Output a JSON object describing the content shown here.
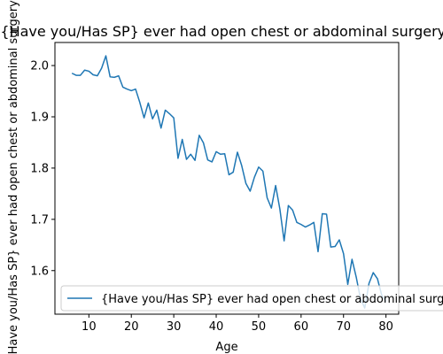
{
  "chart_data": {
    "type": "line",
    "title": "{Have you/Has SP} ever had open chest or abdominal surgery?",
    "xlabel": "Age",
    "ylabel": "{Have you/Has SP} ever had open chest or abdominal surgery?",
    "xlim": [
      2,
      83
    ],
    "ylim": [
      1.515,
      2.045
    ],
    "xticks": [
      10,
      20,
      30,
      40,
      50,
      60,
      70,
      80
    ],
    "yticks": [
      1.6,
      1.7,
      1.8,
      1.9,
      2.0
    ],
    "ytick_labels": [
      "1.6",
      "1.7",
      "1.8",
      "1.9",
      "2.0"
    ],
    "grid": false,
    "legend_position": "bottom-right",
    "series": [
      {
        "name": "{Have you/Has SP} ever had open chest or abdominal surgery?",
        "color": "#1f77b4",
        "x": [
          6,
          7,
          8,
          9,
          10,
          11,
          12,
          13,
          14,
          15,
          16,
          17,
          18,
          19,
          20,
          21,
          22,
          23,
          24,
          25,
          26,
          27,
          28,
          29,
          30,
          31,
          32,
          33,
          34,
          35,
          36,
          37,
          38,
          39,
          40,
          41,
          42,
          43,
          44,
          45,
          46,
          47,
          48,
          49,
          50,
          51,
          52,
          53,
          54,
          55,
          56,
          57,
          58,
          59,
          60,
          61,
          62,
          63,
          64,
          65,
          66,
          67,
          68,
          69,
          70,
          71,
          72,
          73,
          74,
          75,
          76,
          77,
          78,
          79,
          80
        ],
        "y": [
          1.985,
          1.981,
          1.981,
          1.991,
          1.989,
          1.982,
          1.98,
          1.995,
          2.019,
          1.978,
          1.977,
          1.98,
          1.958,
          1.954,
          1.951,
          1.954,
          1.928,
          1.898,
          1.927,
          1.896,
          1.913,
          1.878,
          1.913,
          1.906,
          1.898,
          1.819,
          1.856,
          1.817,
          1.827,
          1.815,
          1.864,
          1.849,
          1.816,
          1.812,
          1.832,
          1.827,
          1.828,
          1.787,
          1.792,
          1.831,
          1.805,
          1.77,
          1.755,
          1.782,
          1.802,
          1.794,
          1.742,
          1.722,
          1.766,
          1.72,
          1.658,
          1.727,
          1.718,
          1.694,
          1.69,
          1.685,
          1.689,
          1.694,
          1.637,
          1.711,
          1.71,
          1.646,
          1.647,
          1.66,
          1.633,
          1.573,
          1.622,
          1.587,
          1.545,
          1.527,
          1.575,
          1.596,
          1.584,
          1.552,
          1.54
        ]
      }
    ]
  }
}
